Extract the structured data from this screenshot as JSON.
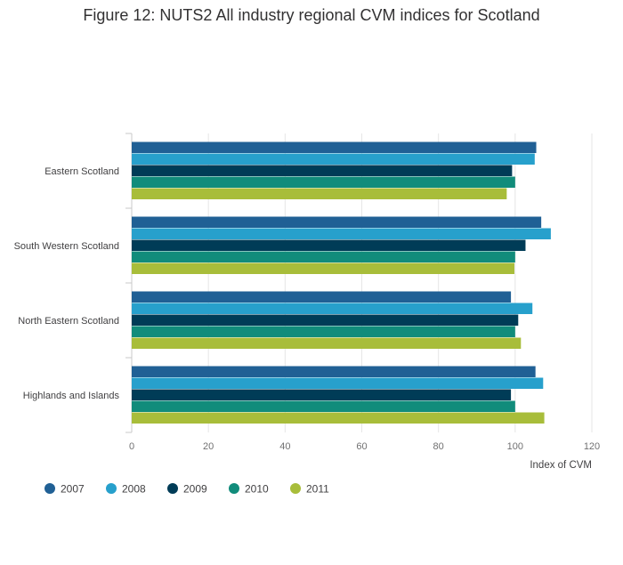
{
  "chart_data": {
    "type": "bar",
    "orientation": "horizontal",
    "title": "Figure 12: NUTS2 All industry regional CVM indices for Scotland",
    "xlabel": "Index of CVM",
    "ylabel": "",
    "xlim": [
      0,
      120
    ],
    "x_ticks": [
      0,
      20,
      40,
      60,
      80,
      100,
      120
    ],
    "grid": "vertical",
    "legend_position": "bottom-left",
    "categories": [
      "Eastern Scotland",
      "South Western Scotland",
      "North Eastern Scotland",
      "Highlands and Islands"
    ],
    "series": [
      {
        "name": "2007",
        "color": "#206095",
        "values": [
          105.5,
          106.8,
          98.9,
          105.3
        ]
      },
      {
        "name": "2008",
        "color": "#27a0cc",
        "values": [
          105.1,
          109.3,
          104.5,
          107.3
        ]
      },
      {
        "name": "2009",
        "color": "#003c57",
        "values": [
          99.2,
          102.7,
          100.8,
          98.9
        ]
      },
      {
        "name": "2010",
        "color": "#118c7b",
        "values": [
          100.0,
          100.0,
          100.0,
          100.0
        ]
      },
      {
        "name": "2011",
        "color": "#a8bd3a",
        "values": [
          97.8,
          99.8,
          101.5,
          107.6
        ]
      }
    ]
  }
}
